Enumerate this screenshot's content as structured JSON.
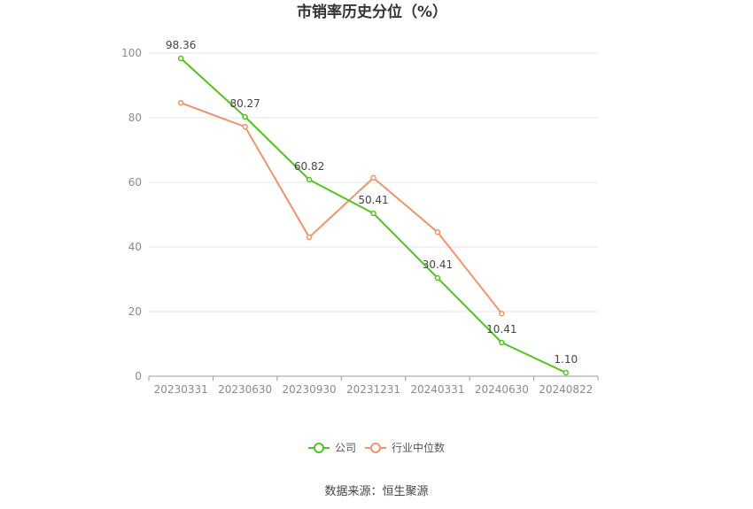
{
  "chart_data": {
    "type": "line",
    "title": "市销率历史分位（%）",
    "categories": [
      "20230331",
      "20230630",
      "20230930",
      "20231231",
      "20240331",
      "20240630",
      "20240822"
    ],
    "ylim": [
      0,
      100
    ],
    "yticks": [
      0,
      20,
      40,
      60,
      80,
      100
    ],
    "grid": true,
    "legend_position": "bottom",
    "series": [
      {
        "name": "公司",
        "color": "#52c41a",
        "values": [
          98.36,
          80.27,
          60.82,
          50.41,
          30.41,
          10.41,
          1.1
        ],
        "labels": [
          "98.36",
          "80.27",
          "60.82",
          "50.41",
          "30.41",
          "10.41",
          "1.10"
        ]
      },
      {
        "name": "行业中位数",
        "color": "#f0936a",
        "values": [
          84.6,
          77.2,
          43.0,
          61.4,
          44.6,
          19.4,
          null
        ]
      }
    ],
    "source": "数据来源：恒生聚源"
  }
}
